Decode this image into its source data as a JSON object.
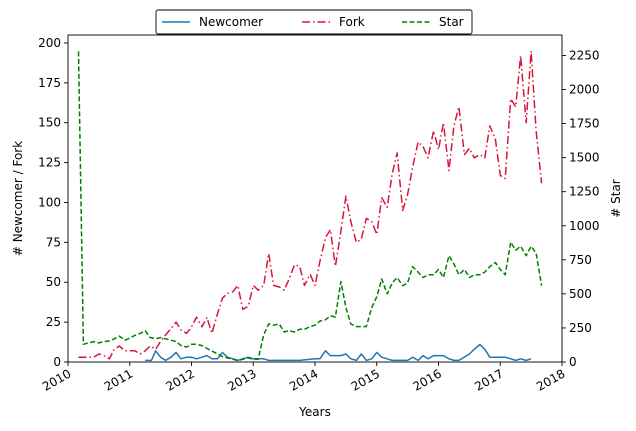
{
  "chart_data": {
    "type": "line",
    "xlabel": "Years",
    "ylabel_left": "# Newcomer / Fork",
    "ylabel_right": "# Star",
    "xlim": [
      2010.0,
      2018.0
    ],
    "ylim_left": [
      0,
      205
    ],
    "ylim_right": [
      0,
      2400
    ],
    "x_ticks": [
      "2010",
      "2011",
      "2012",
      "2013",
      "2014",
      "2015",
      "2016",
      "2017",
      "2018"
    ],
    "y_ticks_left": [
      0,
      25,
      50,
      75,
      100,
      125,
      150,
      175,
      200
    ],
    "y_ticks_right": [
      0,
      250,
      500,
      750,
      1000,
      1250,
      1500,
      1750,
      2000,
      2250
    ],
    "grid": false,
    "legend_position": "top-center",
    "series": [
      {
        "name": "Newcomer",
        "axis": "left",
        "color": "#1f77b4",
        "style": "solid",
        "points": [
          [
            2011.25,
            1
          ],
          [
            2011.35,
            1
          ],
          [
            2011.42,
            7
          ],
          [
            2011.5,
            3
          ],
          [
            2011.58,
            1
          ],
          [
            2011.67,
            3
          ],
          [
            2011.75,
            6
          ],
          [
            2011.83,
            2
          ],
          [
            2011.92,
            3
          ],
          [
            2012.0,
            3
          ],
          [
            2012.08,
            2
          ],
          [
            2012.17,
            3
          ],
          [
            2012.25,
            4
          ],
          [
            2012.33,
            2
          ],
          [
            2012.42,
            2
          ],
          [
            2012.5,
            6
          ],
          [
            2012.58,
            3
          ],
          [
            2012.67,
            2
          ],
          [
            2012.75,
            1
          ],
          [
            2012.83,
            2
          ],
          [
            2012.92,
            3
          ],
          [
            2013.0,
            2
          ],
          [
            2013.08,
            2
          ],
          [
            2013.17,
            2
          ],
          [
            2013.25,
            1
          ],
          [
            2013.5,
            1
          ],
          [
            2013.75,
            1
          ],
          [
            2014.0,
            2
          ],
          [
            2014.08,
            2
          ],
          [
            2014.17,
            7
          ],
          [
            2014.25,
            4
          ],
          [
            2014.33,
            4
          ],
          [
            2014.42,
            4
          ],
          [
            2014.5,
            5
          ],
          [
            2014.58,
            2
          ],
          [
            2014.67,
            1
          ],
          [
            2014.75,
            5
          ],
          [
            2014.83,
            1
          ],
          [
            2014.92,
            2
          ],
          [
            2015.0,
            6
          ],
          [
            2015.08,
            3
          ],
          [
            2015.17,
            2
          ],
          [
            2015.25,
            1
          ],
          [
            2015.33,
            1
          ],
          [
            2015.42,
            1
          ],
          [
            2015.5,
            1
          ],
          [
            2015.58,
            3
          ],
          [
            2015.67,
            1
          ],
          [
            2015.75,
            4
          ],
          [
            2015.83,
            2
          ],
          [
            2015.92,
            4
          ],
          [
            2016.0,
            4
          ],
          [
            2016.08,
            4
          ],
          [
            2016.17,
            2
          ],
          [
            2016.25,
            1
          ],
          [
            2016.33,
            1
          ],
          [
            2016.5,
            5
          ],
          [
            2016.58,
            8
          ],
          [
            2016.67,
            11
          ],
          [
            2016.75,
            8
          ],
          [
            2016.83,
            3
          ],
          [
            2016.92,
            3
          ],
          [
            2017.0,
            3
          ],
          [
            2017.08,
            3
          ],
          [
            2017.17,
            2
          ],
          [
            2017.25,
            1
          ],
          [
            2017.33,
            2
          ],
          [
            2017.42,
            1
          ],
          [
            2017.5,
            2
          ]
        ]
      },
      {
        "name": "Fork",
        "axis": "left",
        "color": "#dc143c",
        "style": "dashdot",
        "points": [
          [
            2010.17,
            3
          ],
          [
            2010.25,
            3
          ],
          [
            2010.33,
            3
          ],
          [
            2010.42,
            3
          ],
          [
            2010.5,
            5
          ],
          [
            2010.58,
            4
          ],
          [
            2010.67,
            2
          ],
          [
            2010.75,
            8
          ],
          [
            2010.83,
            10
          ],
          [
            2010.92,
            7
          ],
          [
            2011.0,
            7
          ],
          [
            2011.08,
            7
          ],
          [
            2011.17,
            5
          ],
          [
            2011.25,
            7
          ],
          [
            2011.33,
            10
          ],
          [
            2011.42,
            8
          ],
          [
            2011.5,
            13
          ],
          [
            2011.58,
            17
          ],
          [
            2011.67,
            21
          ],
          [
            2011.75,
            25
          ],
          [
            2011.83,
            20
          ],
          [
            2011.92,
            18
          ],
          [
            2012.0,
            22
          ],
          [
            2012.08,
            28
          ],
          [
            2012.17,
            22
          ],
          [
            2012.25,
            28
          ],
          [
            2012.33,
            18
          ],
          [
            2012.42,
            30
          ],
          [
            2012.5,
            40
          ],
          [
            2012.58,
            43
          ],
          [
            2012.67,
            44
          ],
          [
            2012.75,
            48
          ],
          [
            2012.83,
            33
          ],
          [
            2012.92,
            35
          ],
          [
            2013.0,
            48
          ],
          [
            2013.08,
            45
          ],
          [
            2013.17,
            48
          ],
          [
            2013.25,
            68
          ],
          [
            2013.33,
            48
          ],
          [
            2013.42,
            47
          ],
          [
            2013.5,
            45
          ],
          [
            2013.58,
            52
          ],
          [
            2013.67,
            61
          ],
          [
            2013.75,
            60
          ],
          [
            2013.83,
            48
          ],
          [
            2013.92,
            55
          ],
          [
            2014.0,
            48
          ],
          [
            2014.08,
            63
          ],
          [
            2014.17,
            78
          ],
          [
            2014.25,
            83
          ],
          [
            2014.33,
            60
          ],
          [
            2014.42,
            82
          ],
          [
            2014.5,
            104
          ],
          [
            2014.58,
            88
          ],
          [
            2014.67,
            75
          ],
          [
            2014.75,
            77
          ],
          [
            2014.83,
            90
          ],
          [
            2014.92,
            88
          ],
          [
            2015.0,
            80
          ],
          [
            2015.08,
            103
          ],
          [
            2015.17,
            97
          ],
          [
            2015.25,
            118
          ],
          [
            2015.33,
            131
          ],
          [
            2015.42,
            95
          ],
          [
            2015.5,
            105
          ],
          [
            2015.58,
            122
          ],
          [
            2015.67,
            138
          ],
          [
            2015.75,
            135
          ],
          [
            2015.83,
            128
          ],
          [
            2015.92,
            145
          ],
          [
            2016.0,
            133
          ],
          [
            2016.08,
            150
          ],
          [
            2016.17,
            120
          ],
          [
            2016.25,
            148
          ],
          [
            2016.33,
            160
          ],
          [
            2016.42,
            130
          ],
          [
            2016.5,
            134
          ],
          [
            2016.58,
            128
          ],
          [
            2016.67,
            130
          ],
          [
            2016.75,
            128
          ],
          [
            2016.83,
            148
          ],
          [
            2016.92,
            140
          ],
          [
            2017.0,
            117
          ],
          [
            2017.08,
            115
          ],
          [
            2017.17,
            165
          ],
          [
            2017.25,
            160
          ],
          [
            2017.33,
            192
          ],
          [
            2017.42,
            150
          ],
          [
            2017.5,
            195
          ],
          [
            2017.58,
            145
          ],
          [
            2017.67,
            112
          ]
        ]
      },
      {
        "name": "Star",
        "axis": "right",
        "color": "#008000",
        "style": "dashed",
        "points": [
          [
            2010.17,
            2280
          ],
          [
            2010.25,
            130
          ],
          [
            2010.33,
            140
          ],
          [
            2010.42,
            150
          ],
          [
            2010.5,
            140
          ],
          [
            2010.58,
            150
          ],
          [
            2010.67,
            155
          ],
          [
            2010.75,
            170
          ],
          [
            2010.83,
            190
          ],
          [
            2010.92,
            160
          ],
          [
            2011.0,
            175
          ],
          [
            2011.08,
            195
          ],
          [
            2011.17,
            210
          ],
          [
            2011.25,
            230
          ],
          [
            2011.33,
            180
          ],
          [
            2011.42,
            170
          ],
          [
            2011.5,
            180
          ],
          [
            2011.58,
            170
          ],
          [
            2011.67,
            160
          ],
          [
            2011.75,
            150
          ],
          [
            2011.83,
            120
          ],
          [
            2011.92,
            110
          ],
          [
            2012.0,
            130
          ],
          [
            2012.08,
            130
          ],
          [
            2012.17,
            120
          ],
          [
            2012.25,
            100
          ],
          [
            2012.33,
            80
          ],
          [
            2012.42,
            60
          ],
          [
            2012.5,
            40
          ],
          [
            2012.58,
            30
          ],
          [
            2012.67,
            20
          ],
          [
            2012.75,
            10
          ],
          [
            2012.83,
            20
          ],
          [
            2012.92,
            30
          ],
          [
            2013.0,
            20
          ],
          [
            2013.08,
            20
          ],
          [
            2013.17,
            200
          ],
          [
            2013.25,
            280
          ],
          [
            2013.33,
            270
          ],
          [
            2013.42,
            280
          ],
          [
            2013.5,
            220
          ],
          [
            2013.58,
            230
          ],
          [
            2013.67,
            220
          ],
          [
            2013.75,
            240
          ],
          [
            2013.83,
            240
          ],
          [
            2013.92,
            260
          ],
          [
            2014.0,
            270
          ],
          [
            2014.08,
            300
          ],
          [
            2014.17,
            310
          ],
          [
            2014.25,
            340
          ],
          [
            2014.33,
            330
          ],
          [
            2014.42,
            590
          ],
          [
            2014.5,
            400
          ],
          [
            2014.58,
            280
          ],
          [
            2014.67,
            260
          ],
          [
            2014.75,
            260
          ],
          [
            2014.83,
            260
          ],
          [
            2014.92,
            400
          ],
          [
            2015.0,
            480
          ],
          [
            2015.08,
            610
          ],
          [
            2015.17,
            500
          ],
          [
            2015.25,
            580
          ],
          [
            2015.33,
            620
          ],
          [
            2015.42,
            560
          ],
          [
            2015.5,
            580
          ],
          [
            2015.58,
            700
          ],
          [
            2015.67,
            660
          ],
          [
            2015.75,
            620
          ],
          [
            2015.83,
            640
          ],
          [
            2015.92,
            640
          ],
          [
            2016.0,
            680
          ],
          [
            2016.08,
            620
          ],
          [
            2016.17,
            780
          ],
          [
            2016.25,
            720
          ],
          [
            2016.33,
            640
          ],
          [
            2016.42,
            680
          ],
          [
            2016.5,
            620
          ],
          [
            2016.58,
            640
          ],
          [
            2016.67,
            640
          ],
          [
            2016.75,
            660
          ],
          [
            2016.83,
            700
          ],
          [
            2016.92,
            730
          ],
          [
            2017.0,
            680
          ],
          [
            2017.08,
            640
          ],
          [
            2017.17,
            880
          ],
          [
            2017.25,
            820
          ],
          [
            2017.33,
            850
          ],
          [
            2017.42,
            780
          ],
          [
            2017.5,
            850
          ],
          [
            2017.58,
            800
          ],
          [
            2017.67,
            560
          ]
        ]
      }
    ]
  }
}
